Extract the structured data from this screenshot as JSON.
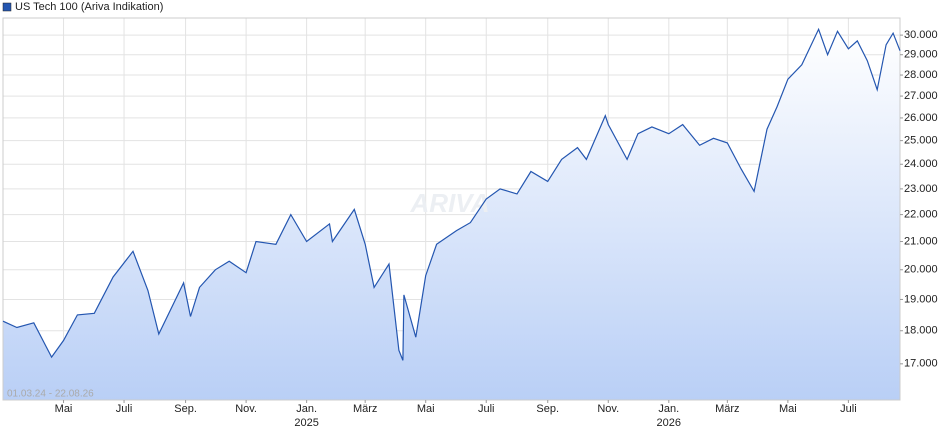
{
  "chart_data": {
    "type": "area",
    "legend_label": "US Tech 100 (Ariva Indikation)",
    "range_label": "01.03.24 - 22.08.26",
    "watermark": "ARIVA",
    "log_y": true,
    "grid": true,
    "color": "#2456b0",
    "fill_bottom": "#b9cff6",
    "fill_top": "#ffffff",
    "xlim": [
      "2024-03-01",
      "2026-08-22"
    ],
    "ylim": [
      15970,
      30900
    ],
    "yticks": [
      {
        "value": 17000,
        "label": "17.000"
      },
      {
        "value": 18000,
        "label": "18.000"
      },
      {
        "value": 19000,
        "label": "19.000"
      },
      {
        "value": 20000,
        "label": "20.000"
      },
      {
        "value": 21000,
        "label": "21.000"
      },
      {
        "value": 22000,
        "label": "22.000"
      },
      {
        "value": 23000,
        "label": "23.000"
      },
      {
        "value": 24000,
        "label": "24.000"
      },
      {
        "value": 25000,
        "label": "25.000"
      },
      {
        "value": 26000,
        "label": "26.000"
      },
      {
        "value": 27000,
        "label": "27.000"
      },
      {
        "value": 28000,
        "label": "28.000"
      },
      {
        "value": 29000,
        "label": "29.000"
      },
      {
        "value": 30000,
        "label": "30.000"
      }
    ],
    "xticks": [
      {
        "value": "2024-05-01",
        "label": "Mai"
      },
      {
        "value": "2024-07-01",
        "label": "Juli"
      },
      {
        "value": "2024-09-01",
        "label": "Sep."
      },
      {
        "value": "2024-11-01",
        "label": "Nov."
      },
      {
        "value": "2025-01-01",
        "label": "Jan."
      },
      {
        "value": "2025-03-01",
        "label": "März"
      },
      {
        "value": "2025-05-01",
        "label": "Mai"
      },
      {
        "value": "2025-07-01",
        "label": "Juli"
      },
      {
        "value": "2025-09-01",
        "label": "Sep."
      },
      {
        "value": "2025-11-01",
        "label": "Nov."
      },
      {
        "value": "2026-01-01",
        "label": "Jan."
      },
      {
        "value": "2026-03-01",
        "label": "März"
      },
      {
        "value": "2026-05-01",
        "label": "Mai"
      },
      {
        "value": "2026-07-01",
        "label": "Juli"
      }
    ],
    "xtick_years": [
      {
        "value": "2025-01-01",
        "label": "2025"
      },
      {
        "value": "2026-01-01",
        "label": "2026"
      }
    ],
    "x": [
      "2024-03-01",
      "2024-03-15",
      "2024-04-01",
      "2024-04-19",
      "2024-05-01",
      "2024-05-15",
      "2024-06-01",
      "2024-06-20",
      "2024-07-10",
      "2024-07-25",
      "2024-08-05",
      "2024-08-30",
      "2024-09-06",
      "2024-09-15",
      "2024-10-01",
      "2024-10-15",
      "2024-11-01",
      "2024-11-11",
      "2024-12-01",
      "2024-12-16",
      "2025-01-01",
      "2025-01-24",
      "2025-01-27",
      "2025-02-18",
      "2025-03-01",
      "2025-03-10",
      "2025-03-25",
      "2025-04-04",
      "2025-04-08",
      "2025-04-09",
      "2025-04-21",
      "2025-05-01",
      "2025-05-12",
      "2025-06-01",
      "2025-06-15",
      "2025-07-01",
      "2025-07-15",
      "2025-08-01",
      "2025-08-15",
      "2025-09-01",
      "2025-09-15",
      "2025-10-01",
      "2025-10-10",
      "2025-10-29",
      "2025-11-01",
      "2025-11-20",
      "2025-12-01",
      "2025-12-15",
      "2026-01-01",
      "2026-01-15",
      "2026-02-01",
      "2026-02-15",
      "2026-03-01",
      "2026-03-15",
      "2026-03-28",
      "2026-04-10",
      "2026-04-20",
      "2026-05-01",
      "2026-05-15",
      "2026-06-01",
      "2026-06-10",
      "2026-06-20",
      "2026-07-01",
      "2026-07-10",
      "2026-07-20",
      "2026-07-30",
      "2026-08-08",
      "2026-08-15",
      "2026-08-22"
    ],
    "values": [
      18300,
      18100,
      18250,
      17200,
      17700,
      18500,
      18550,
      19750,
      20650,
      19300,
      17900,
      19550,
      18450,
      19400,
      20000,
      20300,
      19900,
      21000,
      20900,
      22000,
      21000,
      21650,
      21000,
      22200,
      20900,
      19400,
      20200,
      17400,
      17100,
      19150,
      17800,
      19800,
      20900,
      21400,
      21700,
      22600,
      23000,
      22800,
      23700,
      23300,
      24200,
      24700,
      24200,
      26100,
      25700,
      24200,
      25300,
      25600,
      25300,
      25700,
      24800,
      25100,
      24900,
      23800,
      22900,
      25500,
      26500,
      27800,
      28500,
      30300,
      29000,
      30200,
      29300,
      29700,
      28700,
      27300,
      29500,
      30100,
      29200
    ]
  }
}
